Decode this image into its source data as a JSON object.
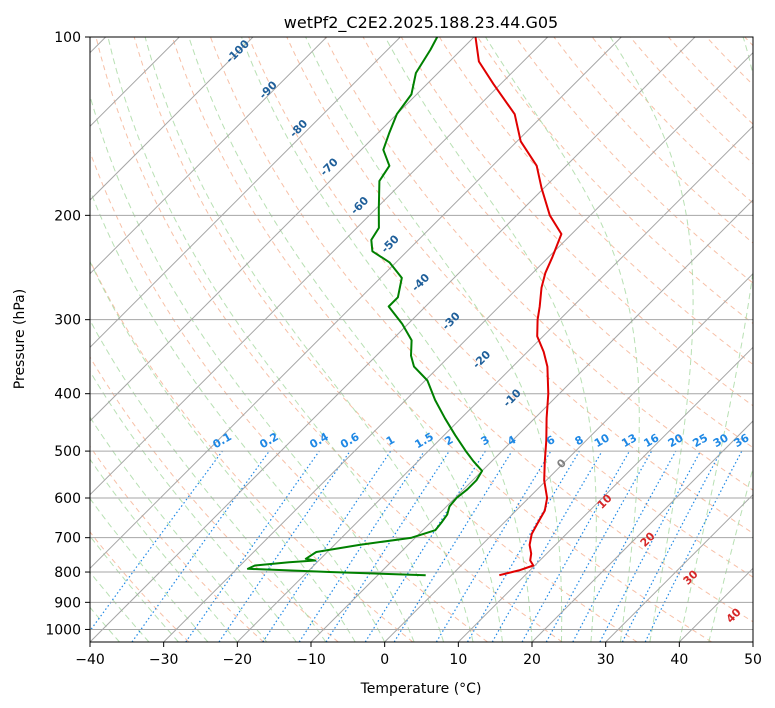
{
  "chart_data": {
    "type": "line",
    "title": "wetPf2_C2E2.2025.188.23.44.G05",
    "xlabel": "Temperature (°C)",
    "ylabel": "Pressure (hPa)",
    "xlim": [
      -40,
      50
    ],
    "ylim": [
      1050,
      100
    ],
    "y_scale": "log",
    "skew": "skew-T log-P",
    "grid": true,
    "x_ticks": [
      -40,
      -30,
      -20,
      -10,
      0,
      10,
      20,
      30,
      40,
      50
    ],
    "y_ticks": [
      100,
      200,
      300,
      400,
      500,
      600,
      700,
      800,
      900,
      1000
    ],
    "series": [
      {
        "color": "#e00000",
        "points": [
          [
            810,
            6.5
          ],
          [
            795,
            8.5
          ],
          [
            780,
            9.8
          ],
          [
            765,
            8.7
          ],
          [
            745,
            7.9
          ],
          [
            720,
            6.5
          ],
          [
            690,
            5.3
          ],
          [
            660,
            4.6
          ],
          [
            630,
            3.9
          ],
          [
            600,
            2.5
          ],
          [
            560,
            -0.3
          ],
          [
            520,
            -2.8
          ],
          [
            480,
            -5.4
          ],
          [
            440,
            -8.4
          ],
          [
            400,
            -11.5
          ],
          [
            360,
            -15.3
          ],
          [
            340,
            -17.8
          ],
          [
            320,
            -20.8
          ],
          [
            300,
            -23.0
          ],
          [
            285,
            -24.5
          ],
          [
            265,
            -26.8
          ],
          [
            250,
            -28.3
          ],
          [
            235,
            -29.5
          ],
          [
            215,
            -31.4
          ],
          [
            200,
            -35.5
          ],
          [
            180,
            -40.3
          ],
          [
            165,
            -44.0
          ],
          [
            150,
            -49.5
          ],
          [
            135,
            -54.0
          ],
          [
            120,
            -61.0
          ],
          [
            110,
            -66.0
          ],
          [
            100,
            -69.8
          ]
        ]
      },
      {
        "color": "#008000",
        "points": [
          [
            810,
            -3.5
          ],
          [
            800,
            -17.0
          ],
          [
            790,
            -28.5
          ],
          [
            780,
            -28.0
          ],
          [
            770,
            -23.8
          ],
          [
            765,
            -20.5
          ],
          [
            760,
            -22.0
          ],
          [
            740,
            -21.5
          ],
          [
            720,
            -16.6
          ],
          [
            700,
            -10.5
          ],
          [
            680,
            -8.3
          ],
          [
            660,
            -8.5
          ],
          [
            640,
            -8.8
          ],
          [
            620,
            -9.6
          ],
          [
            600,
            -9.8
          ],
          [
            580,
            -9.5
          ],
          [
            560,
            -9.5
          ],
          [
            540,
            -10.0
          ],
          [
            520,
            -12.5
          ],
          [
            500,
            -14.9
          ],
          [
            470,
            -18.5
          ],
          [
            440,
            -22.2
          ],
          [
            410,
            -26.0
          ],
          [
            380,
            -29.7
          ],
          [
            360,
            -33.4
          ],
          [
            345,
            -35.3
          ],
          [
            325,
            -37.3
          ],
          [
            305,
            -40.8
          ],
          [
            285,
            -45.0
          ],
          [
            275,
            -45.0
          ],
          [
            255,
            -47.1
          ],
          [
            240,
            -50.9
          ],
          [
            230,
            -54.7
          ],
          [
            220,
            -56.4
          ],
          [
            210,
            -57.0
          ],
          [
            195,
            -59.6
          ],
          [
            185,
            -61.4
          ],
          [
            175,
            -63.3
          ],
          [
            165,
            -64.0
          ],
          [
            155,
            -67.0
          ],
          [
            145,
            -68.5
          ],
          [
            135,
            -70.0
          ],
          [
            125,
            -70.7
          ],
          [
            115,
            -73.0
          ],
          [
            105,
            -74.2
          ],
          [
            100,
            -75.0
          ]
        ]
      }
    ],
    "dry_adiabat_labels": [
      "-100",
      "-90",
      "-80",
      "-70",
      "-60",
      "-50",
      "-40",
      "-30",
      "-20",
      "-10",
      "0",
      "10",
      "20",
      "30",
      "40"
    ],
    "mixing_ratio_labels": [
      "0.1",
      "0.2",
      "0.4",
      "0.6",
      "1",
      "1.5",
      "2",
      "3",
      "4",
      "6",
      "8",
      "10",
      "13",
      "16",
      "20",
      "25",
      "30",
      "36"
    ],
    "colors": {
      "temperature": "#e00000",
      "dewpoint": "#008000",
      "isotherm": "#a6a6a6",
      "dry_adiabat": "#f4a582",
      "moist_adiabat": "#a6d8a0",
      "mixing_ratio": "#1e88e5",
      "label_blue_dark": "#1f5f9a",
      "label_red": "#d62728",
      "label_gray": "#808080"
    }
  }
}
